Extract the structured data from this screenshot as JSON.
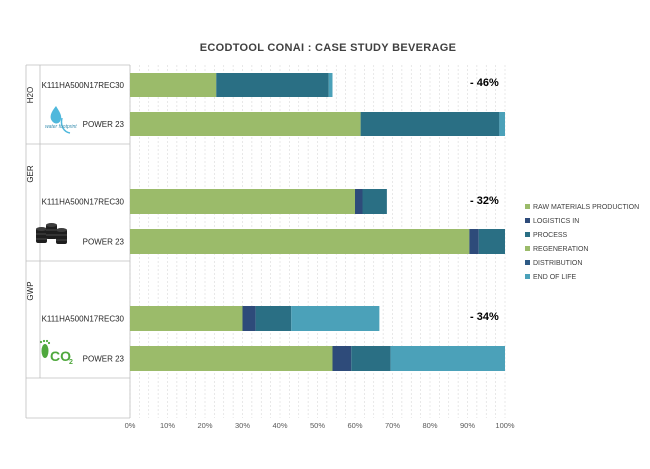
{
  "chart_data": {
    "type": "bar",
    "orientation": "horizontal",
    "stacked": true,
    "title": "ECODTOOL CONAI : CASE STUDY BEVERAGE",
    "xlim": [
      0,
      100
    ],
    "x_ticks": [
      "0%",
      "10%",
      "20%",
      "30%",
      "40%",
      "50%",
      "60%",
      "70%",
      "80%",
      "90%",
      "100%"
    ],
    "legend_position": "right",
    "series": [
      {
        "name": "RAW MATERIALS PRODUCTION",
        "color": "#9bbb6a"
      },
      {
        "name": "LOGISTICS IN",
        "color": "#2e4b7a"
      },
      {
        "name": "PROCESS",
        "color": "#2a6f84"
      },
      {
        "name": "REGENERATION",
        "color": "#9bbb6a"
      },
      {
        "name": "DISTRIBUTION",
        "color": "#2e5a85"
      },
      {
        "name": "END OF LIFE",
        "color": "#4ba1b9"
      }
    ],
    "groups": [
      {
        "label": "H2O",
        "icon": "water-footprint-icon",
        "delta": "- 46%",
        "bars": [
          {
            "label": "K111HA500N17REC30",
            "values": [
              23,
              0,
              30,
              0,
              0,
              1
            ]
          },
          {
            "label": "POWER 23",
            "values": [
              61.5,
              0,
              37,
              0,
              0,
              1.5
            ]
          }
        ]
      },
      {
        "label": "GER",
        "icon": "oil-barrels-icon",
        "delta": "- 32%",
        "bars": [
          {
            "label": "K111HA500N17REC30",
            "values": [
              60,
              2,
              6.5,
              0,
              0,
              0
            ]
          },
          {
            "label": "POWER 23",
            "values": [
              90.5,
              2.5,
              7,
              0,
              0,
              0
            ]
          }
        ]
      },
      {
        "label": "GWP",
        "icon": "co2-footprint-icon",
        "delta": "- 34%",
        "bars": [
          {
            "label": "K111HA500N17REC30",
            "values": [
              30,
              3.5,
              9.5,
              0,
              0,
              23.5
            ]
          },
          {
            "label": "POWER 23",
            "values": [
              54,
              5,
              10.5,
              0,
              0,
              30.5
            ]
          }
        ]
      }
    ],
    "icon_text": {
      "water": "water footprint",
      "co2": "CO2"
    }
  }
}
